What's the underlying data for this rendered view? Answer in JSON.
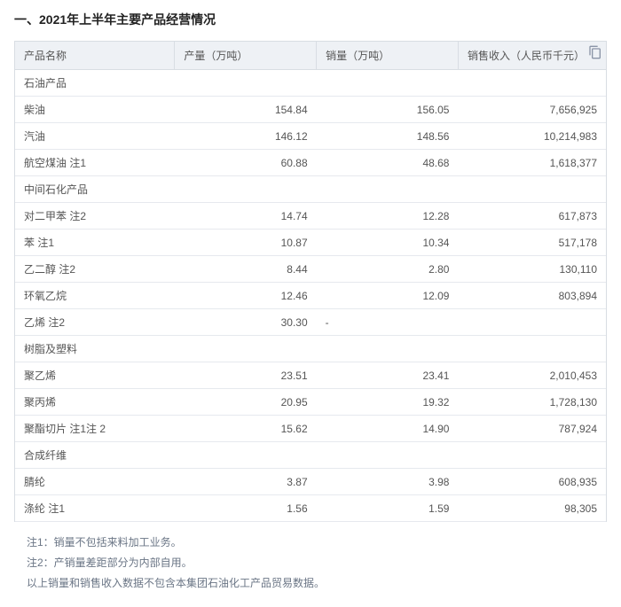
{
  "title": "一、2021年上半年主要产品经营情况",
  "columns": {
    "name": "产品名称",
    "prod": "产量（万吨）",
    "sales": "销量（万吨）",
    "rev": "销售收入（人民币千元）"
  },
  "icon_name": "copy-icon",
  "sections": [
    {
      "category": "石油产品",
      "rows": [
        {
          "name": "柴油",
          "prod": "154.84",
          "sales": "156.05",
          "rev": "7,656,925"
        },
        {
          "name": "汽油",
          "prod": "146.12",
          "sales": "148.56",
          "rev": "10,214,983"
        },
        {
          "name": "航空煤油 注1",
          "prod": "60.88",
          "sales": "48.68",
          "rev": "1,618,377"
        }
      ]
    },
    {
      "category": "中间石化产品",
      "rows": [
        {
          "name": "对二甲苯 注2",
          "prod": "14.74",
          "sales": "12.28",
          "rev": "617,873"
        },
        {
          "name": "苯 注1",
          "prod": "10.87",
          "sales": "10.34",
          "rev": "517,178"
        },
        {
          "name": "乙二醇 注2",
          "prod": "8.44",
          "sales": "2.80",
          "rev": "130,110"
        },
        {
          "name": "环氧乙烷",
          "prod": "12.46",
          "sales": "12.09",
          "rev": "803,894"
        },
        {
          "name": "乙烯 注2",
          "prod": "30.30",
          "sales": "-",
          "rev": ""
        }
      ]
    },
    {
      "category": "树脂及塑料",
      "rows": [
        {
          "name": "聚乙烯",
          "prod": "23.51",
          "sales": "23.41",
          "rev": "2,010,453"
        },
        {
          "name": "聚丙烯",
          "prod": "20.95",
          "sales": "19.32",
          "rev": "1,728,130"
        },
        {
          "name": "聚酯切片 注1注 2",
          "prod": "15.62",
          "sales": "14.90",
          "rev": "787,924"
        }
      ]
    },
    {
      "category": "合成纤维",
      "rows": [
        {
          "name": "腈纶",
          "prod": "3.87",
          "sales": "3.98",
          "rev": "608,935"
        },
        {
          "name": "涤纶 注1",
          "prod": "1.56",
          "sales": "1.59",
          "rev": "98,305"
        }
      ]
    }
  ],
  "notes": {
    "n1": "注1：销量不包括来料加工业务。",
    "n2": "注2：产销量差距部分为内部自用。",
    "n3": "以上销量和销售收入数据不包含本集团石油化工产品贸易数据。"
  }
}
